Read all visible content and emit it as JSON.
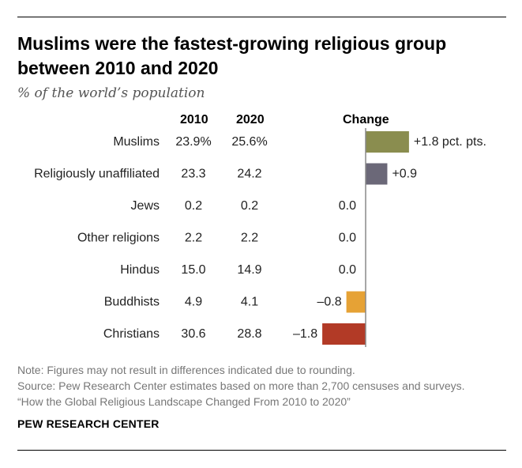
{
  "title": "Muslims were the fastest-growing religious group between 2010 and 2020",
  "subtitle": "% of the world’s population",
  "headers": {
    "year1": "2010",
    "year2": "2020",
    "change": "Change"
  },
  "chart_data": {
    "type": "bar",
    "orientation": "horizontal",
    "title": "Muslims were the fastest-growing religious group between 2010 and 2020",
    "subtitle": "% of the world’s population",
    "categories": [
      "Muslims",
      "Religiously unaffiliated",
      "Jews",
      "Other religions",
      "Hindus",
      "Buddhists",
      "Christians"
    ],
    "pct_2010": [
      "23.9%",
      "23.3",
      "0.2",
      "2.2",
      "15.0",
      "4.9",
      "30.6"
    ],
    "pct_2020": [
      "25.6%",
      "24.2",
      "0.2",
      "2.2",
      "14.9",
      "4.1",
      "28.8"
    ],
    "values": [
      1.8,
      0.9,
      0.0,
      0.0,
      0.0,
      -0.8,
      -1.8
    ],
    "value_labels": [
      "+1.8 pct. pts.",
      "+0.9",
      "0.0",
      "0.0",
      "0.0",
      "–0.8",
      "–1.8"
    ],
    "series_colors": [
      "#8a8d4f",
      "#6b6878",
      "#8a8d4f",
      "#8a8d4f",
      "#8a8d4f",
      "#e6a235",
      "#b23a26"
    ],
    "axis_line_color": "#888888"
  },
  "notes": {
    "note": "Note: Figures may not result in differences indicated due to rounding.",
    "source": "Source: Pew Research Center estimates based on more than 2,700 censuses and surveys.",
    "report": "“How the Global Religious Landscape Changed From 2010 to 2020”"
  },
  "brand": "PEW RESEARCH CENTER"
}
